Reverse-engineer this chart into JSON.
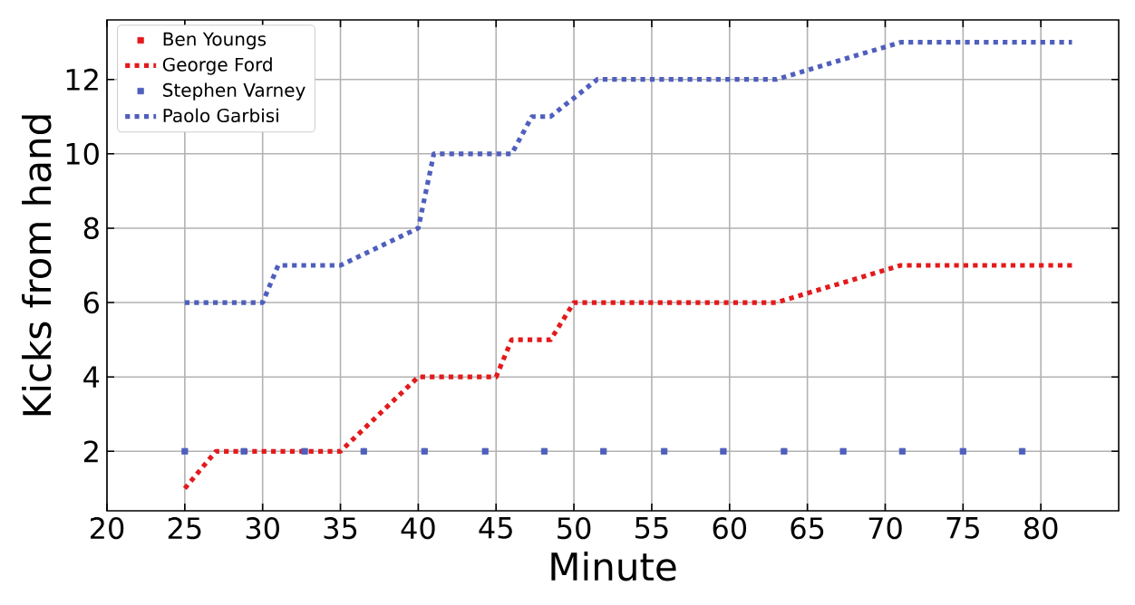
{
  "chart_data": {
    "type": "line",
    "xlabel": "Minute",
    "ylabel": "Kicks from hand",
    "xlim": [
      20,
      85
    ],
    "ylim": [
      0.4,
      13.6
    ],
    "xticks": [
      20,
      25,
      30,
      35,
      40,
      45,
      50,
      55,
      60,
      65,
      70,
      75,
      80
    ],
    "yticks": [
      2,
      4,
      6,
      8,
      10,
      12
    ],
    "grid": true,
    "legend": "top left",
    "series": [
      {
        "name": "Ben Youngs",
        "type": "scatter",
        "marker": "square",
        "color": "#e31a1c"
      },
      {
        "name": "George Ford",
        "line_style": "dotted",
        "color": "#e31a1c",
        "x": [
          25,
          27,
          35,
          40,
          45,
          46,
          48.5,
          50,
          63,
          71,
          82
        ],
        "values": [
          1,
          2,
          2,
          4,
          4,
          5,
          5,
          6,
          6,
          7,
          7
        ]
      },
      {
        "name": "Stephen Varney",
        "type": "scatter",
        "marker": "square",
        "color": "#4f5fbd",
        "x": [
          25,
          28.8,
          32.7,
          36.5,
          40.4,
          44.3,
          48.1,
          51.9,
          55.8,
          59.6,
          63.5,
          67.3,
          71.1,
          75,
          78.8
        ],
        "values": [
          2,
          2,
          2,
          2,
          2,
          2,
          2,
          2,
          2,
          2,
          2,
          2,
          2,
          2,
          2
        ]
      },
      {
        "name": "Paolo Garbisi",
        "line_style": "dotted",
        "color": "#4f5fbd",
        "x": [
          25,
          30,
          31,
          35,
          40,
          41,
          46,
          47.3,
          48.5,
          51.5,
          63,
          71,
          82
        ],
        "values": [
          6,
          6,
          7,
          7,
          8,
          10,
          10,
          11,
          11,
          12,
          12,
          13,
          13
        ]
      }
    ]
  }
}
